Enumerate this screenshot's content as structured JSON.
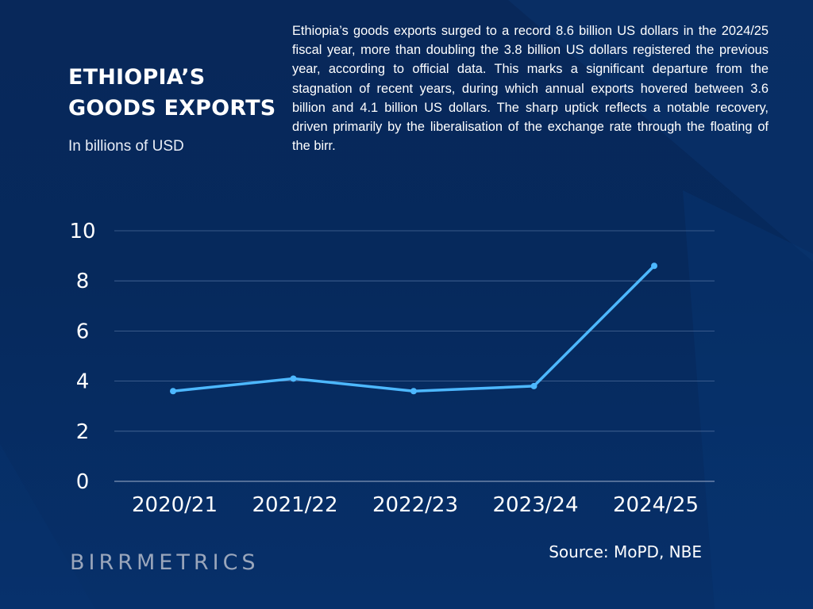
{
  "header": {
    "title": "ETHIOPIA’S\nGOODS EXPORTS",
    "subtitle": "In billions of USD"
  },
  "description": "Ethiopia’s goods exports surged to a record 8.6 billion US dollars in the 2024/25 fiscal year, more than doubling the 3.8 billion US dollars registered the previous year, according to official data. This marks a significant departure from the stagnation of recent years, during which annual exports hovered between 3.6 billion and 4.1 billion US dollars. The sharp uptick reflects a notable recovery, driven primarily by the liberalisation of the exchange rate through the floating of the birr.",
  "footer": {
    "brand": "BIRRMETRICS",
    "source": "Source: MoPD, NBE"
  },
  "colors": {
    "background": "#06295c",
    "line": "#4db8ff",
    "grid": "#4a6a99",
    "text": "#ffffff"
  },
  "chart_data": {
    "type": "line",
    "title": "ETHIOPIA’S GOODS EXPORTS",
    "subtitle": "In billions of USD",
    "categories": [
      "2020/21",
      "2021/22",
      "2022/23",
      "2023/24",
      "2024/25"
    ],
    "values": [
      3.6,
      4.1,
      3.6,
      3.8,
      8.6
    ],
    "ylim": [
      0,
      10
    ],
    "yticks": [
      0,
      2,
      4,
      6,
      8,
      10
    ],
    "grid": true,
    "legend": "none"
  }
}
